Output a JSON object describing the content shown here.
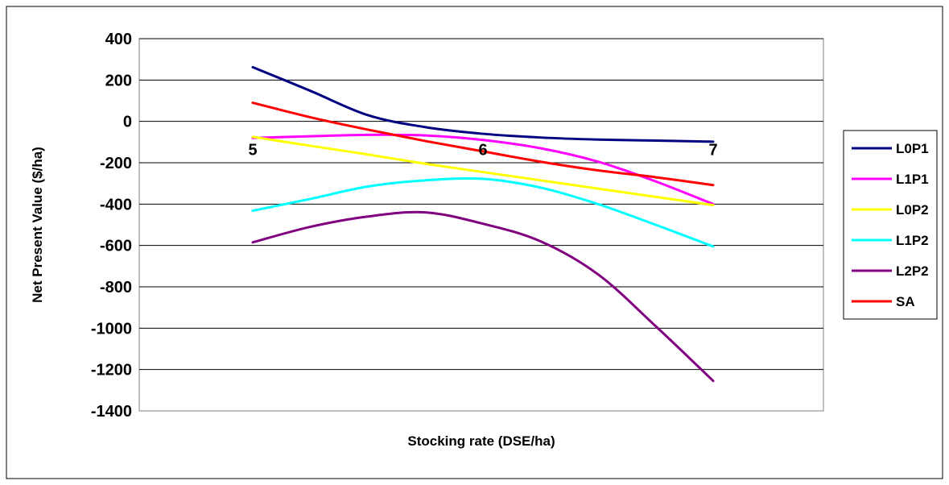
{
  "chart_data": {
    "type": "line",
    "title": "",
    "xlabel": "Stocking rate (DSE/ha)",
    "ylabel": "Net  Present Value ($/ha)",
    "xlim": [
      5,
      7
    ],
    "ylim": [
      -1400,
      400
    ],
    "yticks": [
      400,
      200,
      0,
      -200,
      -400,
      -600,
      -800,
      -1000,
      -1200,
      -1400
    ],
    "xticks": [
      5,
      6,
      7
    ],
    "grid": "horizontal",
    "legend_position": "right",
    "x": [
      5,
      5.25,
      5.5,
      5.75,
      6,
      6.25,
      6.5,
      6.75,
      7
    ],
    "series": [
      {
        "name": "L0P1",
        "color": "#000080",
        "values": [
          262,
          148,
          30,
          -28,
          -60,
          -78,
          -88,
          -93,
          -98
        ]
      },
      {
        "name": "L1P1",
        "color": "#ff00ff",
        "values": [
          -80,
          -72,
          -65,
          -68,
          -90,
          -130,
          -195,
          -290,
          -400
        ]
      },
      {
        "name": "L0P2",
        "color": "#ffff00",
        "values": [
          -75,
          -118,
          -160,
          -205,
          -245,
          -285,
          -325,
          -365,
          -405
        ]
      },
      {
        "name": "L1P2",
        "color": "#00ffff",
        "values": [
          -432,
          -375,
          -315,
          -285,
          -278,
          -320,
          -400,
          -500,
          -605
        ]
      },
      {
        "name": "L2P2",
        "color": "#800080",
        "values": [
          -585,
          -510,
          -460,
          -440,
          -495,
          -580,
          -740,
          -990,
          -1255
        ]
      },
      {
        "name": "SA",
        "color": "#ff0000",
        "values": [
          90,
          20,
          -40,
          -95,
          -145,
          -195,
          -237,
          -270,
          -308
        ]
      }
    ]
  }
}
